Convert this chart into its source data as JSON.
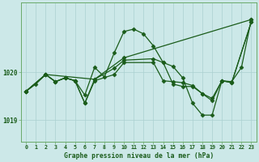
{
  "background_color": "#cce8e8",
  "grid_color": "#aad0d0",
  "line_color": "#1a5c1a",
  "marker_color": "#1a5c1a",
  "title": "Graphe pression niveau de la mer (hPa)",
  "xlim": [
    -0.5,
    23.5
  ],
  "ylim": [
    1018.55,
    1021.45
  ],
  "ytick_positions": [
    1019.0,
    1020.0
  ],
  "ytick_labels": [
    "1019",
    "1020"
  ],
  "xticks": [
    0,
    1,
    2,
    3,
    4,
    5,
    6,
    7,
    8,
    9,
    10,
    11,
    12,
    13,
    14,
    15,
    16,
    17,
    18,
    19,
    20,
    21,
    22,
    23
  ],
  "series": [
    {
      "x": [
        0,
        1,
        2,
        3,
        4,
        5,
        6,
        7,
        8,
        9,
        10,
        11,
        12,
        13,
        14,
        15,
        16,
        17,
        18,
        19,
        20,
        21,
        22,
        23
      ],
      "y": [
        1019.6,
        1019.75,
        1019.95,
        1019.8,
        1019.88,
        1019.82,
        1019.52,
        1020.1,
        1019.9,
        1020.4,
        1020.85,
        1020.9,
        1020.8,
        1020.55,
        1020.2,
        1019.75,
        1019.7,
        1019.7,
        1019.55,
        1019.45,
        1019.82,
        1019.8,
        1020.1,
        1021.1
      ]
    },
    {
      "x": [
        0,
        2,
        7,
        10,
        23
      ],
      "y": [
        1019.6,
        1019.95,
        1019.85,
        1020.3,
        1021.1
      ]
    },
    {
      "x": [
        0,
        2,
        3,
        4,
        5,
        6,
        7,
        9,
        10,
        13,
        14,
        15,
        16,
        17,
        18,
        19,
        20,
        21,
        23
      ],
      "y": [
        1019.6,
        1019.95,
        1019.8,
        1019.88,
        1019.82,
        1019.35,
        1019.82,
        1019.95,
        1020.2,
        1020.2,
        1019.82,
        1019.8,
        1019.78,
        1019.72,
        1019.55,
        1019.4,
        1019.82,
        1019.78,
        1021.05
      ]
    },
    {
      "x": [
        0,
        2,
        3,
        4,
        5,
        6,
        7,
        9,
        10,
        13,
        14,
        15,
        16,
        17,
        18,
        19,
        20,
        21,
        23
      ],
      "y": [
        1019.6,
        1019.95,
        1019.8,
        1019.88,
        1019.82,
        1019.35,
        1019.85,
        1020.08,
        1020.25,
        1020.28,
        1020.2,
        1020.12,
        1019.88,
        1019.35,
        1019.1,
        1019.1,
        1019.82,
        1019.78,
        1021.05
      ]
    }
  ]
}
